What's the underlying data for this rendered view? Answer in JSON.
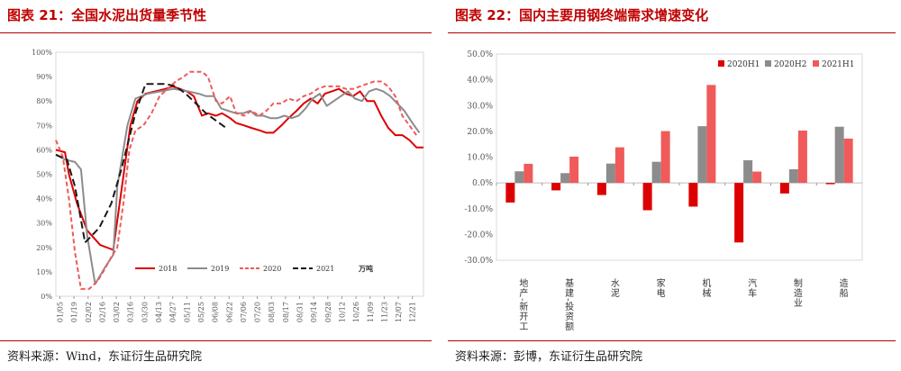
{
  "figures": [
    {
      "title": "图表 21：全国水泥出货量季节性",
      "source": "资料来源：Wind，东证衍生品研究院"
    },
    {
      "title": "图表 22：国内主要用钢终端需求增速变化",
      "source": "资料来源：彭博，东证衍生品研究院"
    }
  ],
  "colors": {
    "title": "#c00000",
    "rule": "#b00000",
    "s2018": "#dd0000",
    "s2019": "#8c8c8c",
    "s2020": "#f05a5a",
    "s2021": "#1a1a1a"
  },
  "chart_data": [
    {
      "type": "line",
      "title": "全国水泥出货量季节性",
      "unit_label": "万吨",
      "xlabel": "",
      "ylabel": "",
      "ylim": [
        0,
        100
      ],
      "yticks": [
        0,
        10,
        20,
        30,
        40,
        50,
        60,
        70,
        80,
        90,
        100
      ],
      "ytick_labels": [
        "0%",
        "10%",
        "20%",
        "30%",
        "40%",
        "50%",
        "60%",
        "70%",
        "80%",
        "90%",
        "100%"
      ],
      "x_tick_labels": [
        "01/05",
        "01/19",
        "02/02",
        "02/16",
        "03/02",
        "03/16",
        "03/30",
        "04/13",
        "04/27",
        "05/11",
        "05/25",
        "06/08",
        "06/22",
        "07/06",
        "07/20",
        "08/03",
        "08/17",
        "08/31",
        "09/14",
        "09/28",
        "10/12",
        "10/26",
        "11/09",
        "11/23",
        "12/07",
        "12/21"
      ],
      "x_ticks_days": [
        5,
        19,
        33,
        47,
        61,
        75,
        89,
        103,
        117,
        131,
        145,
        159,
        173,
        187,
        201,
        215,
        229,
        243,
        257,
        271,
        285,
        299,
        313,
        327,
        341,
        355
      ],
      "legend": [
        "2018",
        "2019",
        "2020",
        "2021"
      ],
      "legend_position": "bottom-right",
      "series": [
        {
          "name": "2018",
          "style": "solid",
          "x_days": [
            1,
            10,
            14,
            22,
            32,
            45,
            58,
            65,
            75,
            82,
            90,
            100,
            110,
            117,
            124,
            131,
            138,
            146,
            152,
            160,
            166,
            174,
            180,
            188,
            195,
            203,
            210,
            217,
            225,
            232,
            240,
            247,
            254,
            261,
            268,
            275,
            282,
            289,
            296,
            303,
            310,
            317,
            324,
            331,
            338,
            345,
            352,
            359,
            366
          ],
          "y": [
            60,
            59,
            50,
            38,
            27,
            21,
            19,
            40,
            70,
            80,
            83,
            84,
            85,
            86,
            85,
            84,
            82,
            74,
            75,
            74,
            75,
            73,
            71,
            70,
            69,
            68,
            67,
            67,
            70,
            73,
            76,
            79,
            81,
            79,
            83,
            84,
            85,
            83,
            82,
            84,
            80,
            80,
            74,
            69,
            66,
            66,
            64,
            61,
            61
          ]
        },
        {
          "name": "2019",
          "style": "solid",
          "x_days": [
            1,
            10,
            20,
            26,
            32,
            40,
            50,
            58,
            62,
            72,
            80,
            92,
            105,
            118,
            132,
            143,
            150,
            158,
            165,
            172,
            180,
            187,
            194,
            200,
            207,
            214,
            221,
            228,
            235,
            242,
            249,
            256,
            263,
            270,
            277,
            284,
            291,
            298,
            305,
            312,
            319,
            326,
            333,
            340,
            347,
            355,
            362
          ],
          "y": [
            58,
            56,
            55,
            52,
            25,
            5,
            12,
            17,
            45,
            70,
            81,
            83,
            84,
            85,
            84,
            83,
            82,
            82,
            77,
            76,
            75,
            75,
            76,
            74,
            74,
            73,
            73,
            74,
            73,
            74,
            77,
            81,
            83,
            78,
            80,
            82,
            84,
            81,
            80,
            84,
            85,
            84,
            82,
            79,
            76,
            71,
            67
          ]
        },
        {
          "name": "2020",
          "style": "dashed",
          "x_days": [
            1,
            8,
            14,
            20,
            26,
            34,
            42,
            48,
            56,
            62,
            68,
            74,
            80,
            88,
            96,
            104,
            112,
            120,
            128,
            134,
            142,
            146,
            152,
            160,
            166,
            174,
            180,
            188,
            195,
            203,
            210,
            217,
            225,
            232,
            240,
            247,
            254,
            261,
            268,
            275,
            282,
            289,
            296,
            303,
            310,
            317,
            324,
            331,
            338,
            345,
            352,
            359
          ],
          "y": [
            64,
            57,
            40,
            18,
            3,
            3,
            6,
            10,
            16,
            20,
            38,
            60,
            68,
            70,
            75,
            82,
            85,
            88,
            90,
            92,
            92,
            92,
            90,
            80,
            79,
            82,
            75,
            74,
            76,
            74,
            76,
            79,
            79,
            81,
            80,
            82,
            83,
            85,
            86,
            86,
            86,
            85,
            85,
            86,
            87,
            88,
            88,
            86,
            82,
            74,
            70,
            66
          ]
        },
        {
          "name": "2021",
          "style": "dashed",
          "x_days": [
            1,
            12,
            20,
            30,
            44,
            56,
            66,
            80,
            90,
            100,
            110,
            120,
            130,
            140,
            150,
            160,
            170
          ],
          "y": [
            58,
            56,
            45,
            22,
            28,
            38,
            52,
            75,
            87,
            87,
            87,
            86,
            83,
            79,
            75,
            72,
            69
          ]
        }
      ]
    },
    {
      "type": "bar",
      "title": "国内主要用钢终端需求增速变化",
      "xlabel": "",
      "ylabel": "",
      "ylim": [
        -30,
        50
      ],
      "yticks": [
        -30,
        -20,
        -10,
        0,
        10,
        20,
        30,
        40,
        50
      ],
      "ytick_labels": [
        "-30.0%",
        "-20.0%",
        "-10.0%",
        "0.0%",
        "10.0%",
        "20.0%",
        "30.0%",
        "40.0%",
        "50.0%"
      ],
      "categories": [
        "地产-新开工",
        "基建-投资额",
        "水泥",
        "家电",
        "机械",
        "汽车",
        "制造业",
        "造船"
      ],
      "legend_position": "top-right",
      "series": [
        {
          "name": "2020H1",
          "values": [
            -7.6,
            -2.9,
            -4.7,
            -10.6,
            -9.2,
            -23.1,
            -4.1,
            -0.5
          ]
        },
        {
          "name": "2020H2",
          "values": [
            4.5,
            3.8,
            7.5,
            8.2,
            22.0,
            8.8,
            5.3,
            21.8
          ]
        },
        {
          "name": "2021H1",
          "values": [
            7.4,
            10.2,
            13.8,
            20.1,
            38.0,
            4.4,
            20.3,
            17.2
          ]
        }
      ]
    }
  ]
}
